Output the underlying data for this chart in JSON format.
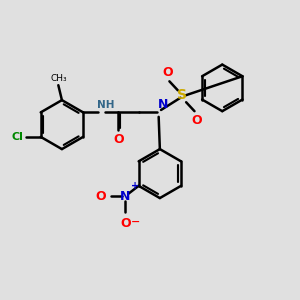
{
  "background_color": "#e0e0e0",
  "colors": {
    "bond": "#000000",
    "nitrogen": "#0000CC",
    "oxygen": "#FF0000",
    "sulfur": "#CCAA00",
    "chlorine": "#008800",
    "NH_color": "#336688"
  },
  "layout": {
    "xlim": [
      0,
      10
    ],
    "ylim": [
      0,
      10
    ],
    "figsize": [
      3.0,
      3.0
    ],
    "dpi": 100
  }
}
